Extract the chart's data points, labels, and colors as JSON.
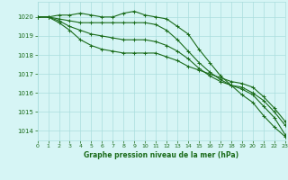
{
  "title": "Graphe pression niveau de la mer (hPa)",
  "bg_color": "#d6f5f5",
  "grid_color": "#aadddd",
  "line_color": "#1a6b1a",
  "xlim": [
    0,
    23
  ],
  "ylim": [
    1013.5,
    1020.8
  ],
  "yticks": [
    1014,
    1015,
    1016,
    1017,
    1018,
    1019,
    1020
  ],
  "xticks": [
    0,
    1,
    2,
    3,
    4,
    5,
    6,
    7,
    8,
    9,
    10,
    11,
    12,
    13,
    14,
    15,
    16,
    17,
    18,
    19,
    20,
    21,
    22,
    23
  ],
  "series": [
    [
      1020.0,
      1020.0,
      1020.1,
      1020.1,
      1020.2,
      1020.1,
      1020.0,
      1020.0,
      1020.2,
      1020.3,
      1020.1,
      1020.0,
      1019.9,
      1019.5,
      1019.1,
      1018.3,
      1017.6,
      1016.9,
      1016.4,
      1015.9,
      1015.5,
      1014.8,
      1014.2,
      1013.7
    ],
    [
      1020.0,
      1020.0,
      1019.9,
      1019.8,
      1019.7,
      1019.7,
      1019.7,
      1019.7,
      1019.7,
      1019.7,
      1019.7,
      1019.6,
      1019.3,
      1018.8,
      1018.2,
      1017.6,
      1017.1,
      1016.7,
      1016.4,
      1016.2,
      1015.9,
      1015.3,
      1014.7,
      1013.8
    ],
    [
      1020.0,
      1020.0,
      1019.8,
      1019.5,
      1019.3,
      1019.1,
      1019.0,
      1018.9,
      1018.8,
      1018.8,
      1018.8,
      1018.7,
      1018.5,
      1018.2,
      1017.8,
      1017.3,
      1016.9,
      1016.6,
      1016.4,
      1016.3,
      1016.0,
      1015.6,
      1015.0,
      1014.3
    ],
    [
      1020.0,
      1020.0,
      1019.7,
      1019.3,
      1018.8,
      1018.5,
      1018.3,
      1018.2,
      1018.1,
      1018.1,
      1018.1,
      1018.1,
      1017.9,
      1017.7,
      1017.4,
      1017.2,
      1017.0,
      1016.8,
      1016.6,
      1016.5,
      1016.3,
      1015.8,
      1015.2,
      1014.5
    ]
  ]
}
